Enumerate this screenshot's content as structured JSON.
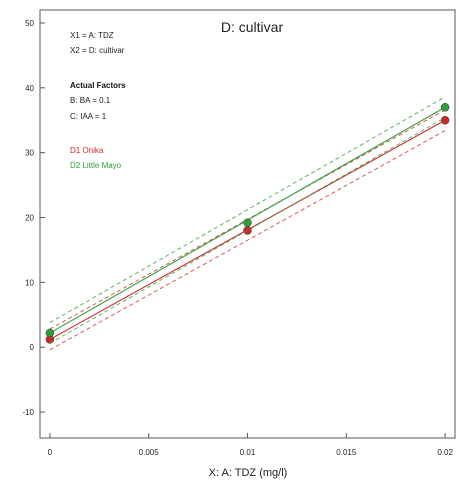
{
  "chart_data": {
    "type": "line",
    "title": "D: cultivar",
    "xlabel": "X: A: TDZ (mg/l)",
    "ylabel": "",
    "xlim": [
      -0.0005,
      0.0205
    ],
    "ylim": [
      -14,
      52
    ],
    "x_ticks": [
      0,
      0.005,
      0.01,
      0.015,
      0.02
    ],
    "x_tick_labels": [
      "0",
      "0.005",
      "0.01",
      "0.015",
      "0.02"
    ],
    "y_ticks": [
      -10,
      0,
      10,
      20,
      30,
      40,
      50
    ],
    "y_tick_labels": [
      "-10",
      "0",
      "10",
      "20",
      "30",
      "40",
      "50"
    ],
    "grid": false,
    "legend_position": "top-left",
    "info_lines": {
      "x1": "X1 = A: TDZ",
      "x2": "X2 = D: cultivar",
      "actual_factors_title": "Actual Factors",
      "factor_b": "B: BA = 0.1",
      "factor_c": "C: IAA = 1"
    },
    "series": [
      {
        "name": "D1 Onika",
        "color": "#cc2a2a",
        "x": [
          0,
          0.01,
          0.02
        ],
        "y": [
          1.2,
          18,
          35
        ],
        "ci_spread": 1.6
      },
      {
        "name": "D2 Little Mayo",
        "color": "#2e9e3a",
        "x": [
          0,
          0.01,
          0.02
        ],
        "y": [
          2.2,
          19.2,
          37
        ],
        "ci_spread": 1.6
      }
    ]
  }
}
